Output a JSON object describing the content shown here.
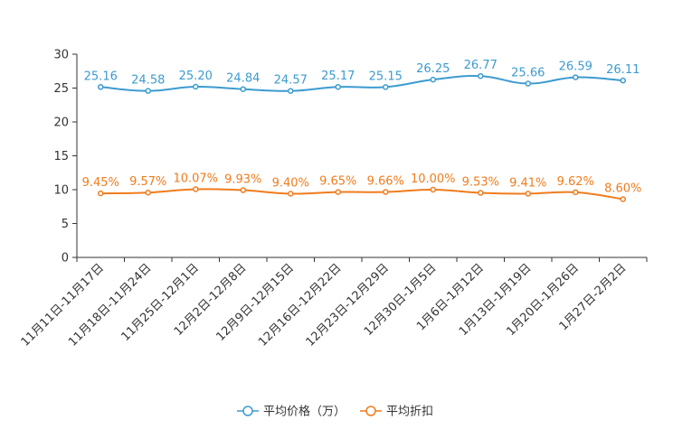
{
  "chart_data": {
    "type": "line",
    "title": "",
    "xlabel": "",
    "ylabel": "",
    "ylim": [
      0,
      30
    ],
    "yticks": [
      "0",
      "5",
      "10",
      "15",
      "20",
      "25",
      "30"
    ],
    "categories": [
      "11月11日-11月17日",
      "11月18日-11月24日",
      "11月25日-12月1日",
      "12月2日-12月8日",
      "12月9日-12月15日",
      "12月16日-12月22日",
      "12月23日-12月29日",
      "12月30日-1月5日",
      "1月6日-1月12日",
      "1月13日-1月19日",
      "1月20日-1月26日",
      "1月27日-2月2日"
    ],
    "series": [
      {
        "name": "平均价格（万）",
        "color": "#3c9bd0",
        "values": [
          25.16,
          24.58,
          25.2,
          24.84,
          24.57,
          25.17,
          25.15,
          26.25,
          26.77,
          25.66,
          26.59,
          26.11
        ],
        "labels": [
          "25.16",
          "24.58",
          "25.20",
          "24.84",
          "24.57",
          "25.17",
          "25.15",
          "26.25",
          "26.77",
          "25.66",
          "26.59",
          "26.11"
        ]
      },
      {
        "name": "平均折扣",
        "color": "#f07c1e",
        "values": [
          9.45,
          9.57,
          10.07,
          9.93,
          9.4,
          9.65,
          9.66,
          10.0,
          9.53,
          9.41,
          9.62,
          8.6
        ],
        "labels": [
          "9.45%",
          "9.57%",
          "10.07%",
          "9.93%",
          "9.40%",
          "9.65%",
          "9.66%",
          "10.00%",
          "9.53%",
          "9.41%",
          "9.62%",
          "8.60%"
        ]
      }
    ],
    "legend_position": "bottom",
    "grid": false
  }
}
